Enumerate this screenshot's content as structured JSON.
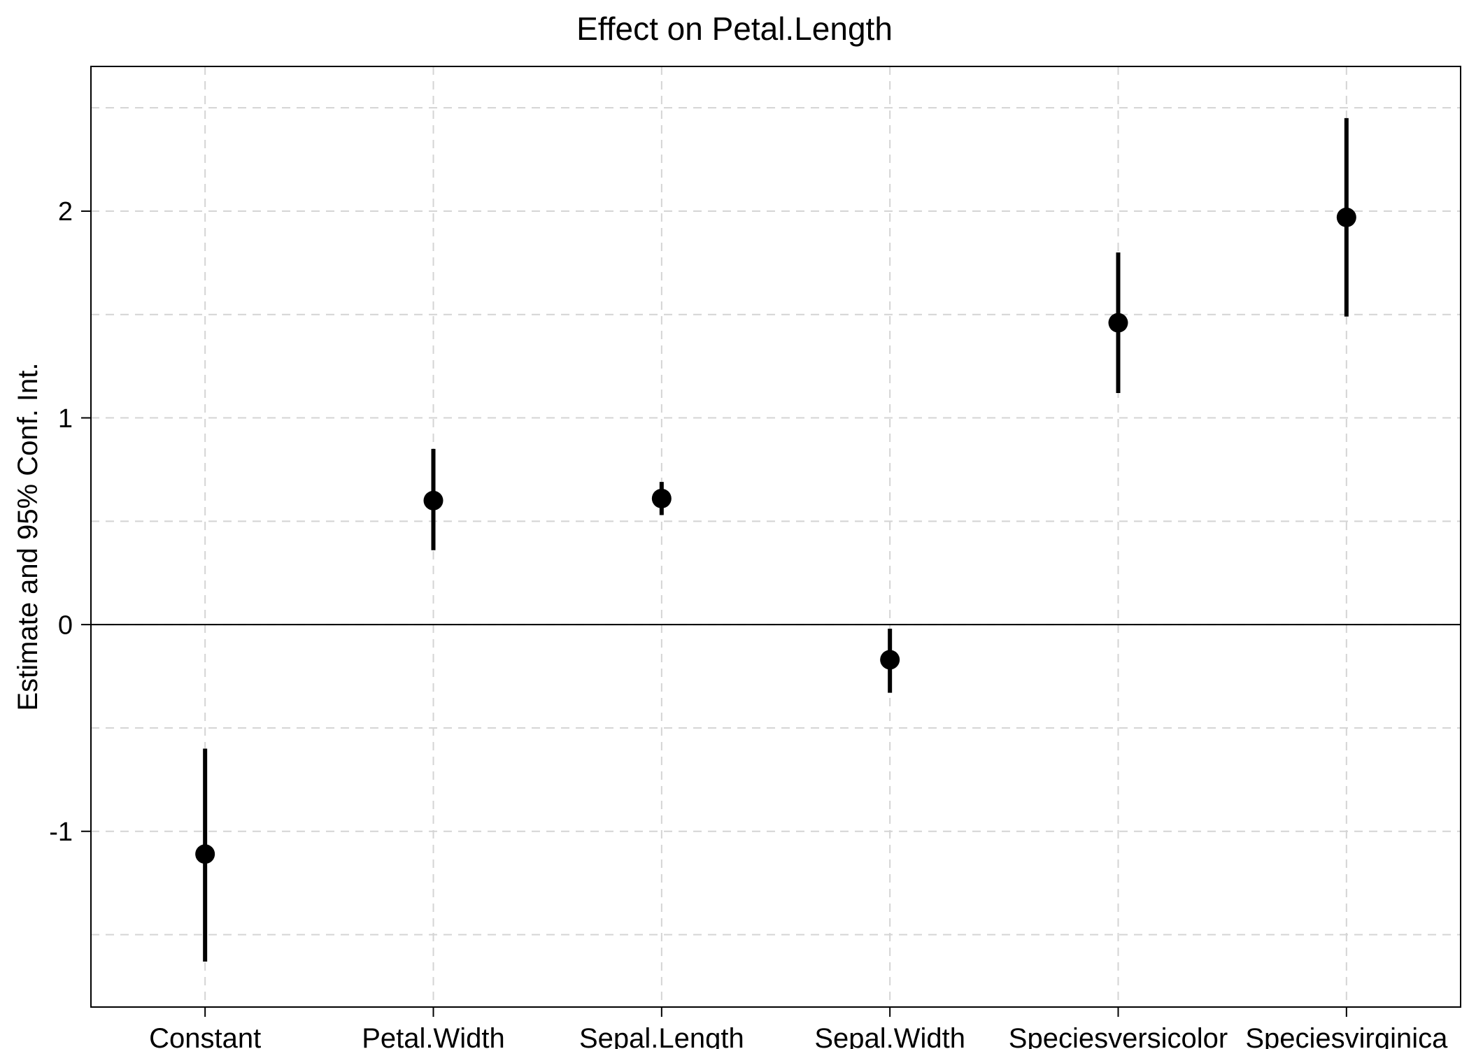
{
  "title": "Effect on Petal.Length",
  "chart_data": {
    "type": "scatter",
    "subtype": "coefficient-plot-with-error-bars",
    "title": "Effect on Petal.Length",
    "xlabel": "",
    "ylabel": "Estimate and 95% Conf. Int.",
    "categories": [
      "Constant",
      "Petal.Width",
      "Sepal.Length",
      "Sepal.Width",
      "Speciesversicolor",
      "Speciesvirginica"
    ],
    "series": [
      {
        "name": "Estimate",
        "estimates": [
          -1.11,
          0.6,
          0.61,
          -0.17,
          1.46,
          1.97
        ],
        "ci_lower": [
          -1.63,
          0.36,
          0.53,
          -0.33,
          1.12,
          1.49
        ],
        "ci_upper": [
          -0.6,
          0.85,
          0.69,
          -0.02,
          1.8,
          2.45
        ]
      }
    ],
    "ylim": [
      -1.85,
      2.7
    ],
    "y_tick_labels": [
      "-1",
      "0",
      "1",
      "2"
    ],
    "y_tick_values": [
      -1,
      0,
      1,
      2
    ],
    "gridline_step": 0.5,
    "grid": true,
    "grid_style": "dashed",
    "zero_line": true,
    "legend": "none",
    "colors": {
      "point": "#000000",
      "error_bar": "#000000",
      "grid": "#d4d4d4",
      "axis": "#000000",
      "zero_line": "#000000",
      "background": "#ffffff",
      "text": "#000000"
    }
  }
}
